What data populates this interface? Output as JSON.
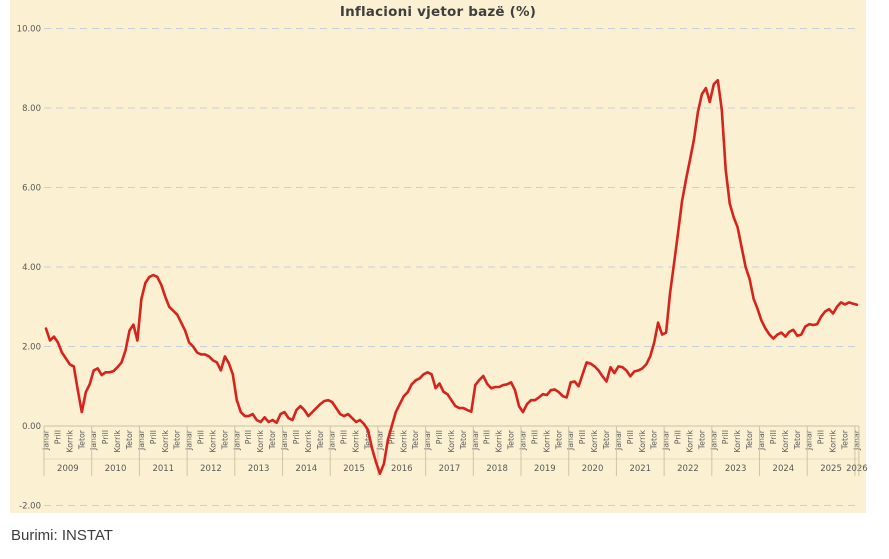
{
  "title": "Inflacioni vjetor bazë (%)",
  "source": "Burimi: INSTAT",
  "colors": {
    "background": "#ffffff",
    "plot_background": "#fbf0d2",
    "line": "#d6231c",
    "gridline": "#c7cfdf",
    "axis_line": "#c9bfa1",
    "tick_text": "#595959",
    "title_text": "#3f3f3f"
  },
  "chart_data": {
    "type": "line",
    "title": "Inflacioni vjetor bazë (%)",
    "series_name": "Inflacioni vjetor bazë (%)",
    "frequency": "monthly",
    "start": "Janar 2009",
    "end": "Janar 2026",
    "quarter_tick_labels": [
      "Janar",
      "Prill",
      "Korrik",
      "Tetor"
    ],
    "years": [
      2009,
      2010,
      2011,
      2012,
      2013,
      2014,
      2015,
      2016,
      2017,
      2018,
      2019,
      2020,
      2021,
      2022,
      2023,
      2024,
      2025,
      2026
    ],
    "ylim": [
      -2,
      10
    ],
    "ytick_labels": [
      "10.00",
      "8.00",
      "6.00",
      "4.00",
      "2.00",
      "0.00",
      "-2.00"
    ],
    "yticks": [
      10,
      8,
      6,
      4,
      2,
      0,
      -2
    ],
    "grid": "dashed horizontal",
    "legend": "none",
    "values": [
      2.45,
      2.15,
      2.25,
      2.1,
      1.85,
      1.7,
      1.55,
      1.5,
      0.9,
      0.35,
      0.85,
      1.05,
      1.4,
      1.45,
      1.28,
      1.35,
      1.35,
      1.38,
      1.48,
      1.6,
      1.9,
      2.4,
      2.55,
      2.15,
      3.2,
      3.6,
      3.75,
      3.8,
      3.75,
      3.55,
      3.25,
      3.0,
      2.9,
      2.8,
      2.6,
      2.4,
      2.1,
      2.0,
      1.85,
      1.8,
      1.8,
      1.75,
      1.65,
      1.6,
      1.4,
      1.75,
      1.58,
      1.3,
      0.65,
      0.35,
      0.25,
      0.25,
      0.3,
      0.15,
      0.1,
      0.22,
      0.1,
      0.15,
      0.08,
      0.3,
      0.35,
      0.2,
      0.15,
      0.4,
      0.5,
      0.4,
      0.25,
      0.35,
      0.45,
      0.55,
      0.63,
      0.65,
      0.6,
      0.45,
      0.3,
      0.25,
      0.3,
      0.2,
      0.1,
      0.15,
      0.05,
      -0.1,
      -0.55,
      -0.9,
      -1.2,
      -0.95,
      -0.35,
      0.0,
      0.35,
      0.55,
      0.75,
      0.85,
      1.05,
      1.15,
      1.2,
      1.3,
      1.35,
      1.3,
      0.95,
      1.07,
      0.86,
      0.8,
      0.65,
      0.5,
      0.45,
      0.45,
      0.4,
      0.36,
      1.03,
      1.16,
      1.26,
      1.06,
      0.95,
      0.98,
      0.98,
      1.03,
      1.05,
      1.1,
      0.9,
      0.5,
      0.35,
      0.55,
      0.65,
      0.65,
      0.72,
      0.8,
      0.78,
      0.9,
      0.92,
      0.85,
      0.75,
      0.72,
      1.1,
      1.12,
      1.0,
      1.3,
      1.6,
      1.57,
      1.5,
      1.4,
      1.25,
      1.12,
      1.48,
      1.33,
      1.5,
      1.48,
      1.4,
      1.25,
      1.37,
      1.4,
      1.45,
      1.55,
      1.75,
      2.1,
      2.6,
      2.3,
      2.35,
      3.35,
      4.1,
      4.85,
      5.65,
      6.2,
      6.7,
      7.2,
      7.9,
      8.35,
      8.5,
      8.15,
      8.6,
      8.7,
      7.95,
      6.45,
      5.6,
      5.25,
      5.0,
      4.5,
      4.0,
      3.7,
      3.2,
      2.95,
      2.65,
      2.45,
      2.3,
      2.2,
      2.3,
      2.35,
      2.25,
      2.37,
      2.42,
      2.27,
      2.3,
      2.5,
      2.56,
      2.54,
      2.56,
      2.75,
      2.88,
      2.94,
      2.83,
      3.0,
      3.11,
      3.06,
      3.11,
      3.08,
      3.05
    ]
  }
}
